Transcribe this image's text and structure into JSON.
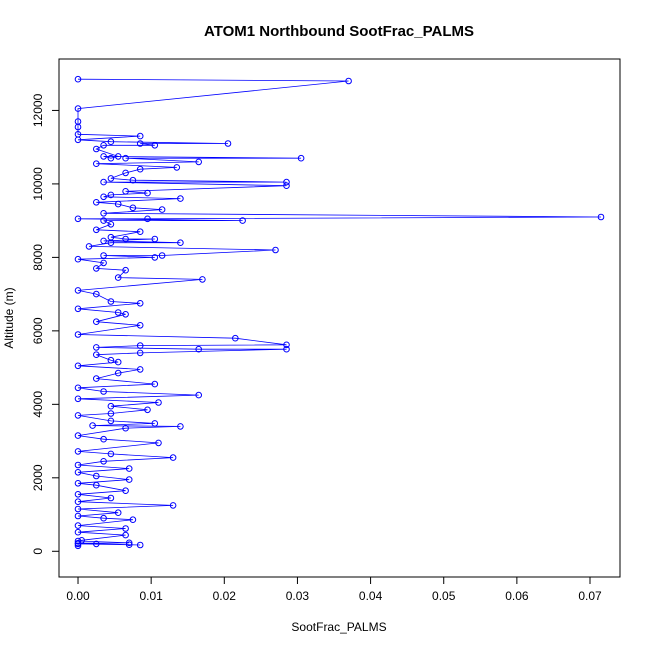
{
  "chart_data": {
    "type": "line",
    "title": "ATOM1 Northbound SootFrac_PALMS",
    "xlabel": "SootFrac_PALMS",
    "ylabel": "Altitude (m)",
    "xlim": [
      -0.0026,
      0.0741
    ],
    "ylim": [
      -700,
      13400
    ],
    "x_ticks": [
      0,
      0.01,
      0.02,
      0.03,
      0.04,
      0.05,
      0.06,
      0.07
    ],
    "x_tick_labels": [
      "0.00",
      "0.01",
      "0.02",
      "0.03",
      "0.04",
      "0.05",
      "0.06",
      "0.07"
    ],
    "y_ticks": [
      0,
      2000,
      4000,
      6000,
      8000,
      10000,
      12000
    ],
    "y_tick_labels": [
      "0",
      "2000",
      "4000",
      "6000",
      "8000",
      "10000",
      "12000"
    ],
    "grid": false,
    "legend": "none",
    "series": [
      {
        "color": "#0000ff",
        "marker": "open-circle",
        "points": [
          [
            0,
            150
          ],
          [
            0,
            200
          ],
          [
            0.007,
            180
          ],
          [
            0.0025,
            200
          ],
          [
            0.0085,
            170
          ],
          [
            0,
            220
          ],
          [
            0.007,
            230
          ],
          [
            0,
            280
          ],
          [
            0.0005,
            300
          ],
          [
            0.0065,
            440
          ],
          [
            0,
            520
          ],
          [
            0.0065,
            620
          ],
          [
            0,
            700
          ],
          [
            0.0075,
            860
          ],
          [
            0.0035,
            900
          ],
          [
            0,
            960
          ],
          [
            0.0055,
            1050
          ],
          [
            0,
            1150
          ],
          [
            0.013,
            1250
          ],
          [
            0,
            1350
          ],
          [
            0.0045,
            1450
          ],
          [
            0,
            1550
          ],
          [
            0.0065,
            1650
          ],
          [
            0.0025,
            1800
          ],
          [
            0,
            1850
          ],
          [
            0.007,
            1950
          ],
          [
            0.0025,
            2050
          ],
          [
            0,
            2150
          ],
          [
            0.007,
            2250
          ],
          [
            0,
            2350
          ],
          [
            0.0035,
            2450
          ],
          [
            0.013,
            2550
          ],
          [
            0.0045,
            2650
          ],
          [
            0,
            2720
          ],
          [
            0.011,
            2950
          ],
          [
            0.0035,
            3050
          ],
          [
            0,
            3150
          ],
          [
            0.0065,
            3350
          ],
          [
            0.014,
            3400
          ],
          [
            0.002,
            3420
          ],
          [
            0.0105,
            3480
          ],
          [
            0.0045,
            3550
          ],
          [
            0,
            3700
          ],
          [
            0.0045,
            3750
          ],
          [
            0.0095,
            3850
          ],
          [
            0.0045,
            3950
          ],
          [
            0.011,
            4050
          ],
          [
            0,
            4150
          ],
          [
            0.0165,
            4250
          ],
          [
            0.0035,
            4350
          ],
          [
            0,
            4450
          ],
          [
            0.0105,
            4550
          ],
          [
            0.0025,
            4700
          ],
          [
            0.0055,
            4850
          ],
          [
            0.0085,
            4950
          ],
          [
            0,
            5050
          ],
          [
            0.0055,
            5150
          ],
          [
            0.0045,
            5200
          ],
          [
            0.0025,
            5350
          ],
          [
            0.0085,
            5400
          ],
          [
            0.0285,
            5500
          ],
          [
            0.0165,
            5500
          ],
          [
            0.0025,
            5550
          ],
          [
            0.0085,
            5600
          ],
          [
            0.0285,
            5620
          ],
          [
            0.0215,
            5800
          ],
          [
            0,
            5900
          ],
          [
            0.0085,
            6150
          ],
          [
            0.0025,
            6250
          ],
          [
            0.0065,
            6450
          ],
          [
            0.0055,
            6500
          ],
          [
            0,
            6600
          ],
          [
            0.0085,
            6750
          ],
          [
            0.0045,
            6800
          ],
          [
            0.0025,
            7000
          ],
          [
            0,
            7100
          ],
          [
            0.017,
            7400
          ],
          [
            0.0055,
            7450
          ],
          [
            0.0065,
            7650
          ],
          [
            0.0025,
            7700
          ],
          [
            0.0035,
            7850
          ],
          [
            0,
            7950
          ],
          [
            0.0105,
            8000
          ],
          [
            0.0035,
            8050
          ],
          [
            0.0115,
            8050
          ],
          [
            0.027,
            8200
          ],
          [
            0.0015,
            8300
          ],
          [
            0.0045,
            8400
          ],
          [
            0.014,
            8400
          ],
          [
            0.0035,
            8450
          ],
          [
            0.0105,
            8500
          ],
          [
            0.0065,
            8500
          ],
          [
            0.0045,
            8550
          ],
          [
            0.0085,
            8700
          ],
          [
            0.0025,
            8750
          ],
          [
            0.0045,
            8900
          ],
          [
            0.0035,
            9000
          ],
          [
            0.0225,
            9000
          ],
          [
            0,
            9050
          ],
          [
            0.0095,
            9050
          ],
          [
            0.0715,
            9100
          ],
          [
            0.0035,
            9200
          ],
          [
            0.0115,
            9300
          ],
          [
            0.0075,
            9350
          ],
          [
            0.0055,
            9450
          ],
          [
            0.0025,
            9500
          ],
          [
            0.014,
            9600
          ],
          [
            0.0035,
            9650
          ],
          [
            0.0045,
            9700
          ],
          [
            0.0095,
            9750
          ],
          [
            0.0065,
            9800
          ],
          [
            0.0285,
            9950
          ],
          [
            0.0035,
            10050
          ],
          [
            0.0285,
            10050
          ],
          [
            0.0075,
            10100
          ],
          [
            0.0045,
            10150
          ],
          [
            0.0065,
            10300
          ],
          [
            0.0085,
            10400
          ],
          [
            0.0135,
            10450
          ],
          [
            0.0025,
            10550
          ],
          [
            0.0165,
            10600
          ],
          [
            0.0065,
            10700
          ],
          [
            0.0305,
            10700
          ],
          [
            0.0035,
            10750
          ],
          [
            0.0045,
            10700
          ],
          [
            0.0055,
            10750
          ],
          [
            0.0025,
            10950
          ],
          [
            0.0035,
            11050
          ],
          [
            0.0105,
            11050
          ],
          [
            0.0085,
            11100
          ],
          [
            0.0205,
            11100
          ],
          [
            0.0045,
            11150
          ],
          [
            0,
            11200
          ],
          [
            0.0085,
            11300
          ],
          [
            0,
            11350
          ],
          [
            0,
            11550
          ],
          [
            0,
            11700
          ],
          [
            0,
            12050
          ],
          [
            0.037,
            12800
          ],
          [
            0,
            12850
          ]
        ]
      }
    ]
  }
}
